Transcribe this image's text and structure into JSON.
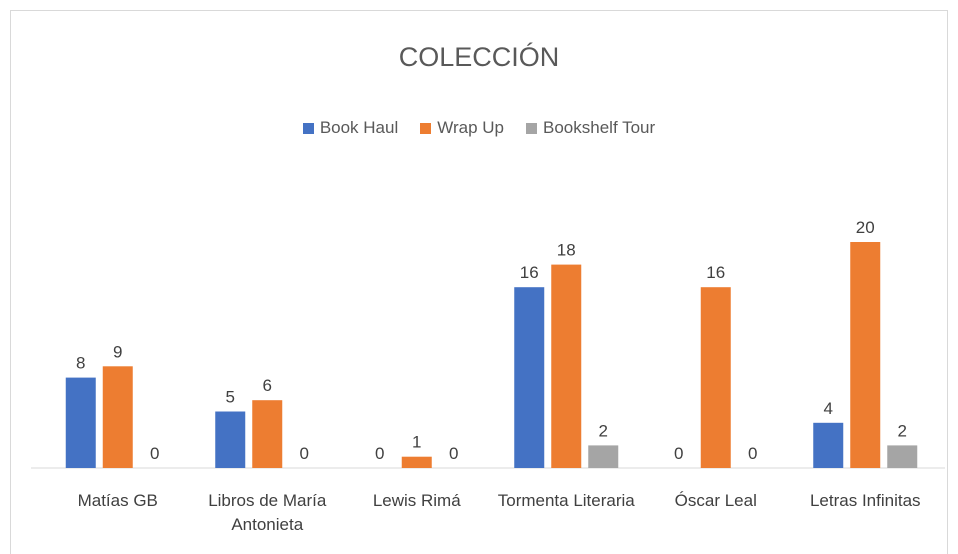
{
  "chart_data": {
    "type": "bar",
    "title": "COLECCIÓN",
    "categories": [
      "Matías GB",
      "Libros de María Antonieta",
      "Lewis Rimá",
      "Tormenta Literaria",
      "Óscar Leal",
      "Letras Infinitas"
    ],
    "series": [
      {
        "name": "Book Haul",
        "color": "#4472c4",
        "values": [
          8,
          5,
          0,
          16,
          0,
          4
        ]
      },
      {
        "name": "Wrap Up",
        "color": "#ed7d31",
        "values": [
          9,
          6,
          1,
          18,
          16,
          20
        ]
      },
      {
        "name": "Bookshelf Tour",
        "color": "#a5a5a5",
        "values": [
          0,
          0,
          0,
          2,
          0,
          2
        ]
      }
    ],
    "legend": "top"
  }
}
